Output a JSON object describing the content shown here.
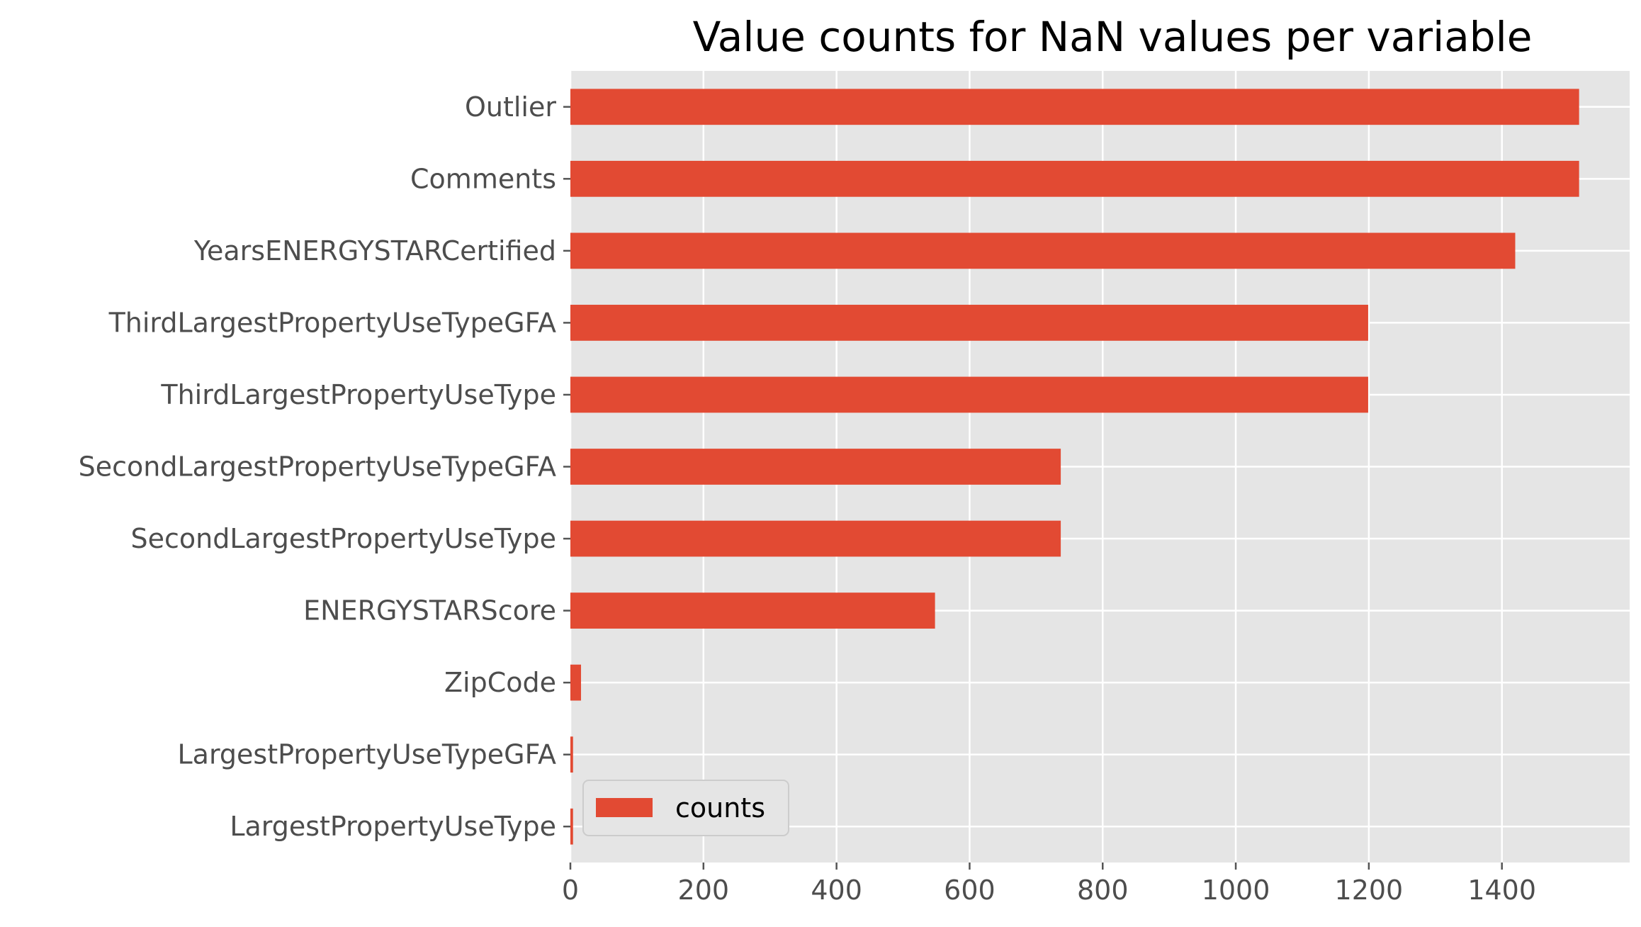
{
  "chart_data": {
    "type": "bar",
    "orientation": "horizontal",
    "title": "Value counts for NaN values per variable",
    "xlabel": "",
    "ylabel": "",
    "categories": [
      "Outlier",
      "Comments",
      "YearsENERGYSTARCertified",
      "ThirdLargestPropertyUseTypeGFA",
      "ThirdLargestPropertyUseType",
      "SecondLargestPropertyUseTypeGFA",
      "SecondLargestPropertyUseType",
      "ENERGYSTARScore",
      "ZipCode",
      "LargestPropertyUseTypeGFA",
      "LargestPropertyUseType"
    ],
    "series": [
      {
        "name": "counts",
        "values": [
          1516,
          1516,
          1420,
          1199,
          1199,
          737,
          737,
          548,
          16,
          4,
          4
        ],
        "color": "#e24a33"
      }
    ],
    "xlim": [
      0,
      1592
    ],
    "xticks": [
      0,
      200,
      400,
      600,
      800,
      1000,
      1200,
      1400
    ],
    "grid": true,
    "legend_position": "lower-left",
    "background_color": "#e5e5e5"
  }
}
